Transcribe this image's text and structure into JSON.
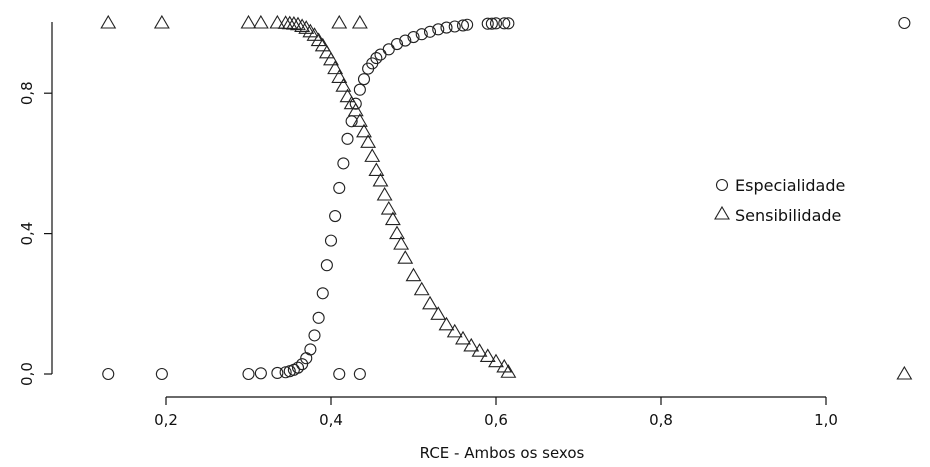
{
  "chart_data": {
    "type": "scatter",
    "title": "",
    "xlabel": "RCE - Ambos os sexos",
    "ylabel": "",
    "xlim": [
      0.05,
      1.12
    ],
    "ylim": [
      -0.02,
      1.02
    ],
    "x_ticks": [
      {
        "value": 0.2,
        "label": "0,2"
      },
      {
        "value": 0.4,
        "label": "0,4"
      },
      {
        "value": 0.6,
        "label": "0,6"
      },
      {
        "value": 0.8,
        "label": "0,8"
      },
      {
        "value": 1.0,
        "label": "1,0"
      }
    ],
    "y_ticks": [
      {
        "value": 0.0,
        "label": "0,0"
      },
      {
        "value": 0.4,
        "label": "0,4"
      },
      {
        "value": 0.8,
        "label": "0,8"
      }
    ],
    "legend_position": "right",
    "series": [
      {
        "name": "Especialidade",
        "marker": "circle",
        "x": [
          0.13,
          0.195,
          0.3,
          0.315,
          0.335,
          0.345,
          0.35,
          0.355,
          0.36,
          0.365,
          0.37,
          0.375,
          0.38,
          0.385,
          0.39,
          0.395,
          0.4,
          0.405,
          0.41,
          0.415,
          0.42,
          0.425,
          0.43,
          0.435,
          0.44,
          0.445,
          0.45,
          0.455,
          0.46,
          0.47,
          0.48,
          0.49,
          0.5,
          0.51,
          0.52,
          0.53,
          0.54,
          0.55,
          0.56,
          0.565,
          0.59,
          0.595,
          0.6,
          0.61,
          0.615,
          1.095,
          0.41,
          0.435
        ],
        "y": [
          0.0,
          0.0,
          0.0,
          0.002,
          0.003,
          0.005,
          0.008,
          0.012,
          0.018,
          0.028,
          0.045,
          0.07,
          0.11,
          0.16,
          0.23,
          0.31,
          0.38,
          0.45,
          0.53,
          0.6,
          0.67,
          0.72,
          0.77,
          0.81,
          0.84,
          0.87,
          0.885,
          0.9,
          0.91,
          0.925,
          0.94,
          0.95,
          0.96,
          0.968,
          0.975,
          0.982,
          0.987,
          0.99,
          0.993,
          0.995,
          0.998,
          0.998,
          0.999,
          0.999,
          0.999,
          1.0,
          0.0,
          0.0
        ]
      },
      {
        "name": "Sensibilidade",
        "marker": "triangle",
        "x": [
          0.13,
          0.195,
          0.3,
          0.315,
          0.335,
          0.345,
          0.35,
          0.355,
          0.36,
          0.365,
          0.37,
          0.375,
          0.38,
          0.385,
          0.39,
          0.395,
          0.4,
          0.405,
          0.41,
          0.415,
          0.42,
          0.425,
          0.43,
          0.435,
          0.44,
          0.445,
          0.45,
          0.455,
          0.46,
          0.465,
          0.47,
          0.475,
          0.48,
          0.485,
          0.49,
          0.5,
          0.51,
          0.52,
          0.53,
          0.54,
          0.55,
          0.56,
          0.57,
          0.58,
          0.59,
          0.6,
          0.61,
          0.615,
          1.095,
          0.41,
          0.435
        ],
        "y": [
          1.0,
          1.0,
          1.0,
          1.0,
          1.0,
          0.999,
          0.998,
          0.997,
          0.995,
          0.99,
          0.985,
          0.975,
          0.965,
          0.95,
          0.935,
          0.915,
          0.895,
          0.87,
          0.845,
          0.82,
          0.79,
          0.77,
          0.75,
          0.72,
          0.69,
          0.66,
          0.62,
          0.58,
          0.55,
          0.51,
          0.47,
          0.44,
          0.4,
          0.37,
          0.33,
          0.28,
          0.24,
          0.2,
          0.17,
          0.14,
          0.12,
          0.1,
          0.08,
          0.065,
          0.05,
          0.035,
          0.02,
          0.005,
          0.0,
          1.0,
          1.0
        ]
      }
    ]
  }
}
